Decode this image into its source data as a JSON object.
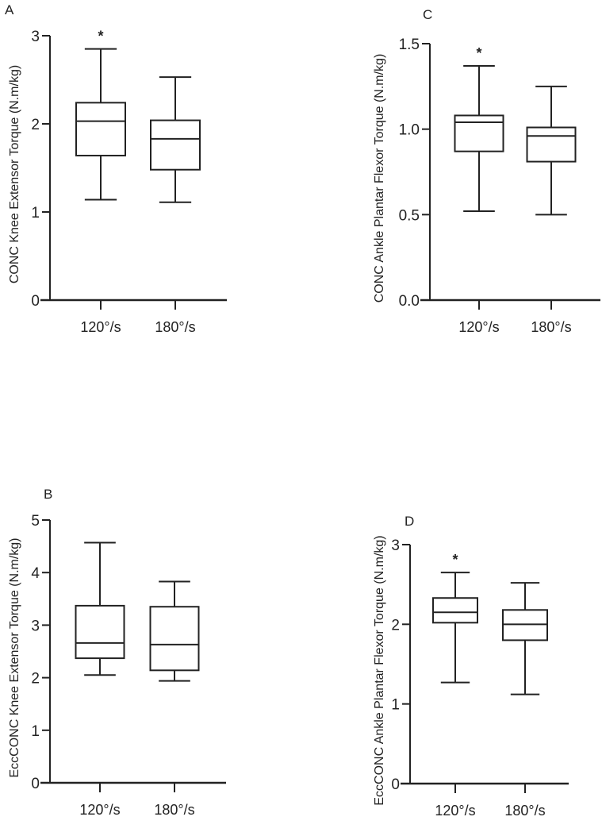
{
  "chart_data": [
    {
      "type": "box",
      "panel_label": "A",
      "ylabel": "CONC Knee Extensor Torque (N.m/kg)",
      "categories": [
        "120°/s",
        "180°/s"
      ],
      "ylim": [
        0,
        3
      ],
      "yticks": [
        "0",
        "1",
        "2",
        "3"
      ],
      "ytick_values": [
        0,
        1,
        2,
        3
      ],
      "boxes": [
        {
          "min": 1.14,
          "q1": 1.64,
          "median": 2.03,
          "q3": 2.24,
          "max": 2.85,
          "significance": "*"
        },
        {
          "min": 1.11,
          "q1": 1.48,
          "median": 1.83,
          "q3": 2.04,
          "max": 2.53,
          "significance": ""
        }
      ]
    },
    {
      "type": "box",
      "panel_label": "B",
      "ylabel": "EccCONC Knee Extensor Torque (N.m/kg)",
      "categories": [
        "120°/s",
        "180°/s"
      ],
      "ylim": [
        0,
        5
      ],
      "yticks": [
        "0",
        "1",
        "2",
        "3",
        "4",
        "5"
      ],
      "ytick_values": [
        0,
        1,
        2,
        3,
        4,
        5
      ],
      "boxes": [
        {
          "min": 2.05,
          "q1": 2.37,
          "median": 2.66,
          "q3": 3.37,
          "max": 4.57,
          "significance": ""
        },
        {
          "min": 1.94,
          "q1": 2.14,
          "median": 2.63,
          "q3": 3.35,
          "max": 3.83,
          "significance": ""
        }
      ]
    },
    {
      "type": "box",
      "panel_label": "C",
      "ylabel": "CONC Ankle Plantar Flexor Torque (N.m/kg)",
      "categories": [
        "120°/s",
        "180°/s"
      ],
      "ylim": [
        0,
        1.5
      ],
      "yticks": [
        "0.0",
        "0.5",
        "1.0",
        "1.5"
      ],
      "ytick_values": [
        0,
        0.5,
        1.0,
        1.5
      ],
      "boxes": [
        {
          "min": 0.52,
          "q1": 0.87,
          "median": 1.04,
          "q3": 1.08,
          "max": 1.37,
          "significance": "*"
        },
        {
          "min": 0.5,
          "q1": 0.81,
          "median": 0.96,
          "q3": 1.01,
          "max": 1.25,
          "significance": ""
        }
      ]
    },
    {
      "type": "box",
      "panel_label": "D",
      "ylabel": "EccCONC Ankle Plantar Flexor Torque (N.m/kg)",
      "categories": [
        "120°/s",
        "180°/s"
      ],
      "ylim": [
        0,
        3
      ],
      "yticks": [
        "0",
        "1",
        "2",
        "3"
      ],
      "ytick_values": [
        0,
        1,
        2,
        3
      ],
      "boxes": [
        {
          "min": 1.27,
          "q1": 2.02,
          "median": 2.15,
          "q3": 2.33,
          "max": 2.65,
          "significance": "*"
        },
        {
          "min": 1.12,
          "q1": 1.8,
          "median": 2.0,
          "q3": 2.18,
          "max": 2.52,
          "significance": ""
        }
      ]
    }
  ]
}
